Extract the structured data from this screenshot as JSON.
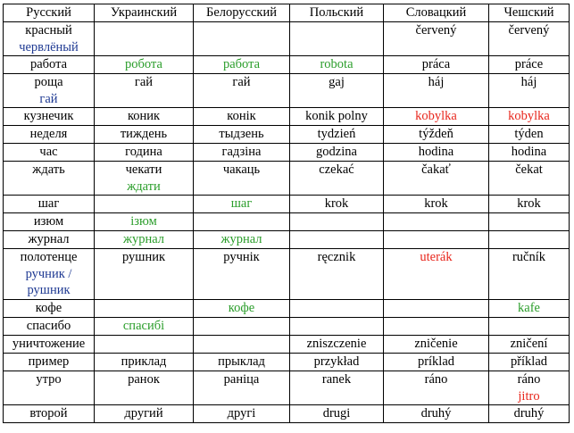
{
  "colors": {
    "green": "#2a9d2a",
    "red": "#e8261c",
    "blue": "#1f3a93",
    "text": "#000000"
  },
  "headers": [
    "Русский",
    "Украинский",
    "Белорусский",
    "Польский",
    "Словацкий",
    "Чешский"
  ],
  "rows": [
    {
      "h": 2,
      "cells": [
        [
          {
            "t": "красный"
          },
          {
            "t": "червлёный",
            "c": "blue"
          }
        ],
        [],
        [],
        [],
        [
          {
            "t": "červený"
          }
        ],
        [
          {
            "t": "červený"
          }
        ]
      ]
    },
    {
      "h": 1,
      "cells": [
        [
          {
            "t": "работа"
          }
        ],
        [
          {
            "t": "робота",
            "c": "green"
          }
        ],
        [
          {
            "t": "работа",
            "c": "green"
          }
        ],
        [
          {
            "t": "robota",
            "c": "green"
          }
        ],
        [
          {
            "t": "práca"
          }
        ],
        [
          {
            "t": "práce"
          }
        ]
      ]
    },
    {
      "h": 2,
      "cells": [
        [
          {
            "t": "роща"
          },
          {
            "t": "гай",
            "c": "blue"
          }
        ],
        [
          {
            "t": "гай"
          }
        ],
        [
          {
            "t": "гай"
          }
        ],
        [
          {
            "t": "gaj"
          }
        ],
        [
          {
            "t": "háj"
          }
        ],
        [
          {
            "t": "háj"
          }
        ]
      ]
    },
    {
      "h": 1,
      "cells": [
        [
          {
            "t": "кузнечик"
          }
        ],
        [
          {
            "t": "коник"
          }
        ],
        [
          {
            "t": "конік"
          }
        ],
        [
          {
            "t": "konik polny"
          }
        ],
        [
          {
            "t": "kobylka",
            "c": "red"
          }
        ],
        [
          {
            "t": "kobylka",
            "c": "red"
          }
        ]
      ]
    },
    {
      "h": 1,
      "cells": [
        [
          {
            "t": "неделя"
          }
        ],
        [
          {
            "t": "тиждень"
          }
        ],
        [
          {
            "t": "тыдзень"
          }
        ],
        [
          {
            "t": "tydzień"
          }
        ],
        [
          {
            "t": "týždeň"
          }
        ],
        [
          {
            "t": "týden"
          }
        ]
      ]
    },
    {
      "h": 1,
      "cells": [
        [
          {
            "t": "час"
          }
        ],
        [
          {
            "t": "година"
          }
        ],
        [
          {
            "t": "гадзіна"
          }
        ],
        [
          {
            "t": "godzina"
          }
        ],
        [
          {
            "t": "hodina"
          }
        ],
        [
          {
            "t": "hodina"
          }
        ]
      ]
    },
    {
      "h": 2,
      "cells": [
        [
          {
            "t": "ждать"
          }
        ],
        [
          {
            "t": "чекати"
          },
          {
            "t": "ждати",
            "c": "green"
          }
        ],
        [
          {
            "t": "чакаць"
          }
        ],
        [
          {
            "t": "czekać"
          }
        ],
        [
          {
            "t": "čakať"
          }
        ],
        [
          {
            "t": "čekat"
          }
        ]
      ]
    },
    {
      "h": 1,
      "cells": [
        [
          {
            "t": "шаг"
          }
        ],
        [],
        [
          {
            "t": "шаг",
            "c": "green"
          }
        ],
        [
          {
            "t": "krok"
          }
        ],
        [
          {
            "t": "krok"
          }
        ],
        [
          {
            "t": "krok"
          }
        ]
      ]
    },
    {
      "h": 1,
      "cells": [
        [
          {
            "t": "изюм"
          }
        ],
        [
          {
            "t": "ізюм",
            "c": "green"
          }
        ],
        [],
        [],
        [],
        []
      ]
    },
    {
      "h": 1,
      "cells": [
        [
          {
            "t": "журнал"
          }
        ],
        [
          {
            "t": "журнал",
            "c": "green"
          }
        ],
        [
          {
            "t": "журнал",
            "c": "green"
          }
        ],
        [],
        [],
        []
      ]
    },
    {
      "h": 3,
      "cells": [
        [
          {
            "t": "полотенце"
          },
          {
            "t": "ручник /",
            "c": "blue"
          },
          {
            "t": "рушник",
            "c": "blue"
          }
        ],
        [
          {
            "t": "рушник"
          }
        ],
        [
          {
            "t": "ручнік"
          }
        ],
        [
          {
            "t": "ręcznik"
          }
        ],
        [
          {
            "t": "uterák",
            "c": "red"
          }
        ],
        [
          {
            "t": "ručník"
          }
        ]
      ]
    },
    {
      "h": 1,
      "cells": [
        [
          {
            "t": "кофе"
          }
        ],
        [],
        [
          {
            "t": "кофе",
            "c": "green"
          }
        ],
        [],
        [],
        [
          {
            "t": "kafe",
            "c": "green"
          }
        ]
      ]
    },
    {
      "h": 1,
      "cells": [
        [
          {
            "t": "спасибо"
          }
        ],
        [
          {
            "t": "спасибі",
            "c": "green"
          }
        ],
        [],
        [],
        [],
        []
      ]
    },
    {
      "h": 1,
      "cells": [
        [
          {
            "t": "уничтожение"
          }
        ],
        [],
        [],
        [
          {
            "t": "zniszczenie"
          }
        ],
        [
          {
            "t": "zničenie"
          }
        ],
        [
          {
            "t": "zničení"
          }
        ]
      ]
    },
    {
      "h": 1,
      "cells": [
        [
          {
            "t": "пример"
          }
        ],
        [
          {
            "t": "приклад"
          }
        ],
        [
          {
            "t": "прыклад"
          }
        ],
        [
          {
            "t": "przykład"
          }
        ],
        [
          {
            "t": "príklad"
          }
        ],
        [
          {
            "t": "příklad"
          }
        ]
      ]
    },
    {
      "h": 2,
      "cells": [
        [
          {
            "t": "утро"
          }
        ],
        [
          {
            "t": "ранок"
          }
        ],
        [
          {
            "t": "раніца"
          }
        ],
        [
          {
            "t": "ranek"
          }
        ],
        [
          {
            "t": "ráno"
          }
        ],
        [
          {
            "t": "ráno"
          },
          {
            "t": "jitro",
            "c": "red"
          }
        ]
      ]
    },
    {
      "h": 1,
      "cells": [
        [
          {
            "t": "второй"
          }
        ],
        [
          {
            "t": "другий"
          }
        ],
        [
          {
            "t": "другі"
          }
        ],
        [
          {
            "t": "drugi"
          }
        ],
        [
          {
            "t": "druhý"
          }
        ],
        [
          {
            "t": "druhý"
          }
        ]
      ]
    }
  ]
}
